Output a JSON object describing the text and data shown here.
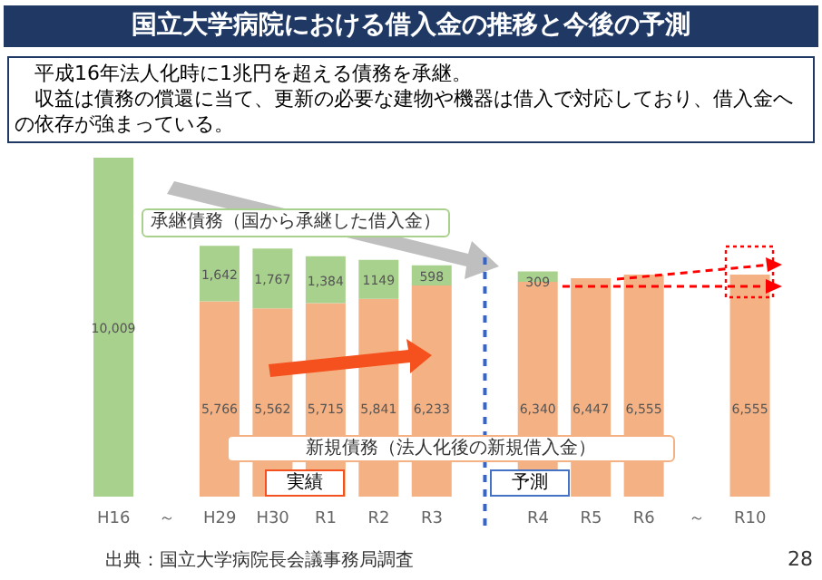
{
  "chart_data": {
    "type": "bar",
    "title": "国立大学病院における借入金の推移と今後の予測",
    "subtitle": "平成16年法人化時に1兆円を超える債務を承継。",
    "categories": [
      "H16",
      "～",
      "H29",
      "H30",
      "R1",
      "R2",
      "R3",
      null,
      "R4",
      "R5",
      "R6",
      "～",
      "R10"
    ],
    "stacked": true,
    "tick_labels": "x",
    "series": [
      {
        "name": "新規債務（法人化後の新規借入金）",
        "color": "#f4b183",
        "values": [
          null,
          null,
          5766,
          5562,
          5715,
          5841,
          6233,
          null,
          6340,
          6447,
          6555,
          null,
          6555
        ],
        "value_labels": [
          null,
          null,
          "5,766",
          "5,562",
          "5,715",
          "5,841",
          "6,233",
          null,
          "6,340",
          "6,447",
          "6,555",
          null,
          "6,555"
        ]
      },
      {
        "name": "承継債務（国から承継した借入金）",
        "color": "#a9d18e",
        "values": [
          10009,
          null,
          1642,
          1767,
          1384,
          1149,
          598,
          null,
          309,
          null,
          null,
          null,
          null
        ],
        "value_labels": [
          "10,009",
          null,
          "1,642",
          "1,767",
          "1,384",
          "1149",
          "598",
          null,
          "309",
          null,
          null,
          null,
          null
        ]
      }
    ],
    "annotations": [
      "実績",
      "予測",
      "出典：国立大学病院長会議事務局調査",
      "28",
      "収益は債務の償還に当て、更新の必要な建物や機器は借入で対応しており、借入金への依存が強まっている。"
    ]
  }
}
